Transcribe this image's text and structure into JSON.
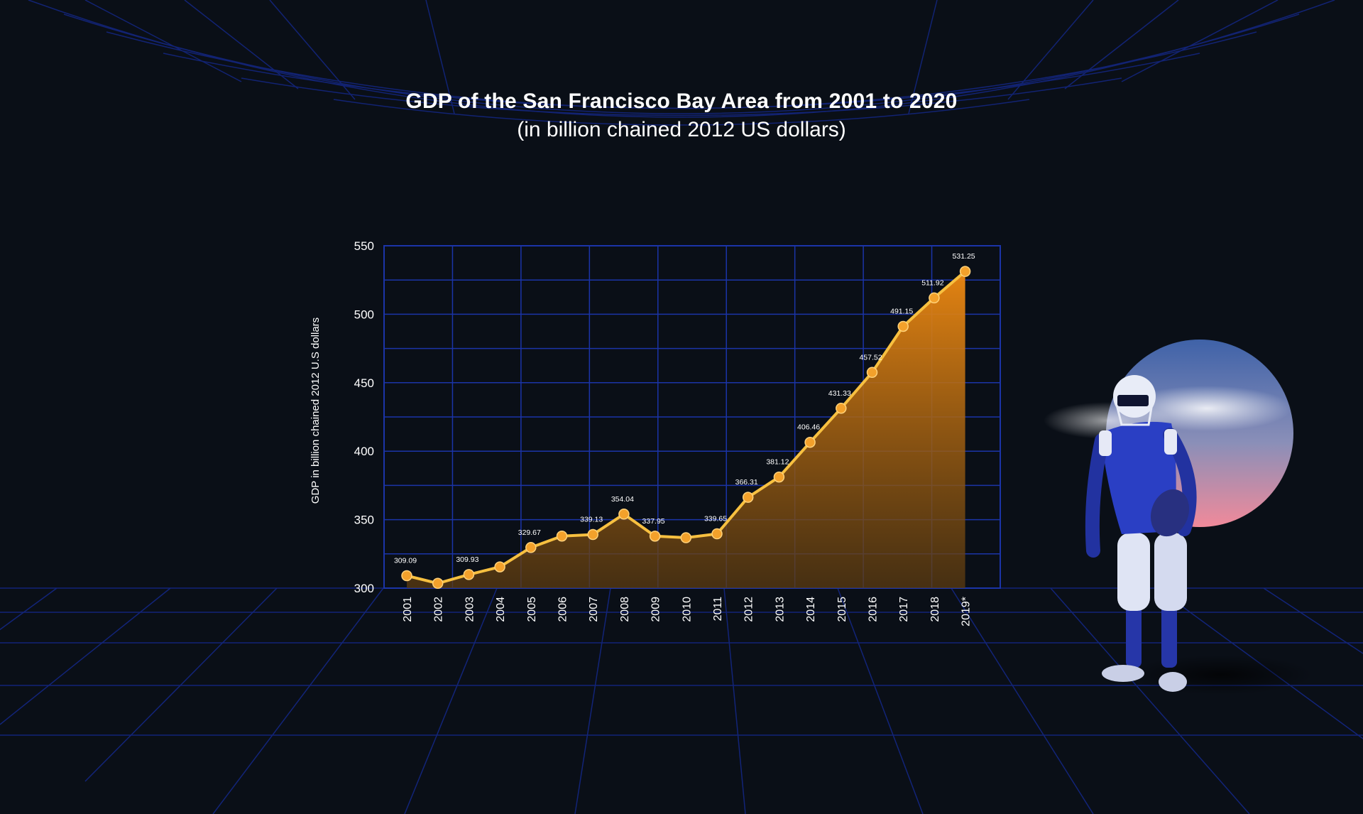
{
  "colors": {
    "background": "#0a0f17",
    "grid": "#1b34a8",
    "line": "#f7c040",
    "area": "#f08a12",
    "marker": "#f3a12b",
    "text": "#ffffff"
  },
  "chart_data": {
    "type": "area",
    "title": "GDP of the San Francisco Bay Area from 2001 to 2020",
    "subtitle": "(in billion chained 2012  US  dollars)",
    "ylabel": "GDP in billion chained 2012 U.S dollars",
    "xlabel": "",
    "ylim": [
      300,
      550
    ],
    "yticks": [
      300,
      350,
      400,
      450,
      500,
      550
    ],
    "grid": true,
    "categories": [
      "2001",
      "2002",
      "2003",
      "2004",
      "2005",
      "2006",
      "2007",
      "2008",
      "2009",
      "2010",
      "2011",
      "2012",
      "2013",
      "2014",
      "2015",
      "2016",
      "2017",
      "2018",
      "2019*"
    ],
    "values": [
      309.09,
      303.5,
      309.93,
      315.5,
      329.67,
      338.0,
      339.13,
      354.04,
      337.95,
      336.8,
      339.65,
      366.31,
      381.12,
      406.46,
      431.33,
      457.52,
      491.15,
      511.92,
      531.25
    ],
    "data_labels": [
      "309.09",
      "",
      "309.93",
      "",
      "329.67",
      "",
      "339.13",
      "354.04",
      "337.95",
      "",
      "339.65",
      "366.31",
      "381.12",
      "406.46",
      "431.33",
      "457.52",
      "491.15",
      "511.92",
      "531.25"
    ]
  }
}
